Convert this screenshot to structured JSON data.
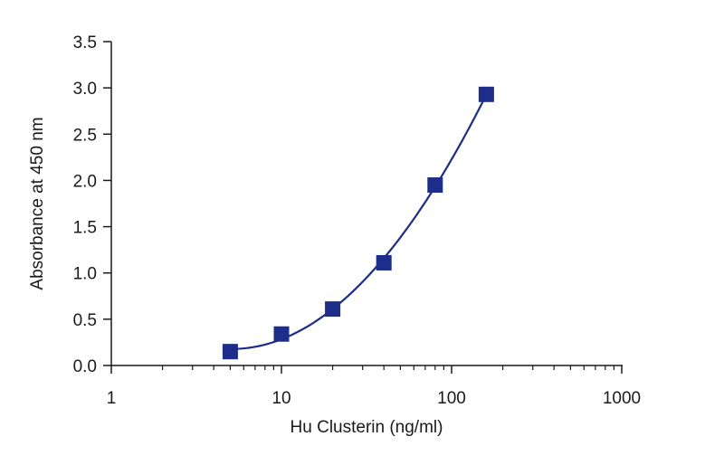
{
  "chart_data": {
    "type": "scatter",
    "title": "",
    "xlabel": "Hu Clusterin (ng/ml)",
    "ylabel": "Absorbance at 450 nm",
    "xscale": "log",
    "xlim": [
      1,
      1000
    ],
    "ylim": [
      0,
      3.5
    ],
    "x_ticks": [
      1,
      10,
      100,
      1000
    ],
    "x_tick_labels": [
      "1",
      "10",
      "100",
      "1000"
    ],
    "y_ticks": [
      0,
      0.5,
      1.0,
      1.5,
      2.0,
      2.5,
      3.0,
      3.5
    ],
    "y_tick_labels": [
      "0.0",
      "0.5",
      "1.0",
      "1.5",
      "2.0",
      "2.5",
      "3.0",
      "3.5"
    ],
    "grid": false,
    "legend": "none",
    "marker": "square",
    "fitted_curve": true,
    "color": "#1c2d8a",
    "series": [
      {
        "x": [
          5,
          10,
          20,
          40,
          80,
          160
        ],
        "y": [
          0.15,
          0.34,
          0.61,
          1.11,
          1.95,
          2.93
        ]
      }
    ]
  }
}
